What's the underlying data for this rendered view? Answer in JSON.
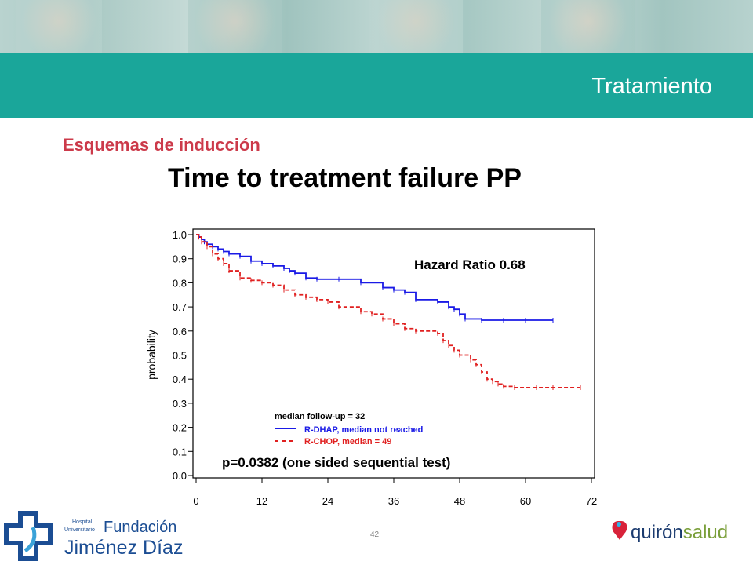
{
  "header": {
    "section_title": "Tratamiento"
  },
  "content": {
    "subtitle": "Esquemas de inducción"
  },
  "chart_data": {
    "type": "line",
    "title": "Time to treatment failure PP",
    "xlabel": "",
    "ylabel": "probability",
    "xlim": [
      0,
      72
    ],
    "ylim": [
      0,
      1.0
    ],
    "x_ticks": [
      "0",
      "12",
      "24",
      "36",
      "48",
      "60",
      "72"
    ],
    "y_ticks": [
      "0.0",
      "0.1",
      "0.2",
      "0.3",
      "0.4",
      "0.5",
      "0.6",
      "0.7",
      "0.8",
      "0.9",
      "1.0"
    ],
    "grid": false,
    "legend_header": "median follow-up =  32",
    "series": [
      {
        "name": "R-DHAP, median not reached",
        "color": "#1a1ae6",
        "style": "solid",
        "x": [
          0,
          0.5,
          1,
          1.5,
          2,
          3,
          4,
          5,
          6,
          8,
          10,
          12,
          14,
          16,
          17,
          18,
          20,
          22,
          26,
          30,
          34,
          36,
          38,
          40,
          44,
          46,
          47,
          48,
          49,
          52,
          56,
          60,
          65
        ],
        "y": [
          1.0,
          0.99,
          0.98,
          0.97,
          0.96,
          0.95,
          0.94,
          0.93,
          0.92,
          0.91,
          0.89,
          0.88,
          0.87,
          0.86,
          0.85,
          0.84,
          0.82,
          0.815,
          0.815,
          0.8,
          0.78,
          0.77,
          0.76,
          0.73,
          0.72,
          0.7,
          0.69,
          0.67,
          0.65,
          0.645,
          0.645,
          0.645,
          0.645
        ]
      },
      {
        "name": "R-CHOP, median =  49",
        "color": "#e02020",
        "style": "dashed",
        "x": [
          0,
          0.5,
          1,
          2,
          3,
          4,
          5,
          6,
          8,
          10,
          12,
          14,
          16,
          18,
          20,
          22,
          24,
          26,
          30,
          32,
          34,
          36,
          38,
          40,
          44,
          45,
          46,
          47,
          48,
          50,
          51,
          52,
          53,
          54,
          55,
          56,
          58,
          62,
          65,
          70
        ],
        "y": [
          1.0,
          0.99,
          0.97,
          0.95,
          0.92,
          0.9,
          0.88,
          0.85,
          0.82,
          0.81,
          0.8,
          0.79,
          0.77,
          0.75,
          0.74,
          0.73,
          0.72,
          0.7,
          0.68,
          0.67,
          0.65,
          0.63,
          0.61,
          0.6,
          0.59,
          0.56,
          0.54,
          0.52,
          0.5,
          0.48,
          0.46,
          0.43,
          0.4,
          0.39,
          0.38,
          0.37,
          0.365,
          0.365,
          0.365,
          0.365
        ]
      }
    ],
    "annotations": {
      "hazard_ratio": "Hazard Ratio 0.68",
      "p_value": "p=0.0382 (one sided sequential test)"
    }
  },
  "footer": {
    "page_number": "42",
    "logo_left": {
      "line1": "Hospital",
      "line2": "Universitario",
      "name1": "Fundación",
      "name2": "Jiménez Díaz"
    },
    "logo_right": {
      "part1": "quirón",
      "part2": "salud"
    }
  }
}
